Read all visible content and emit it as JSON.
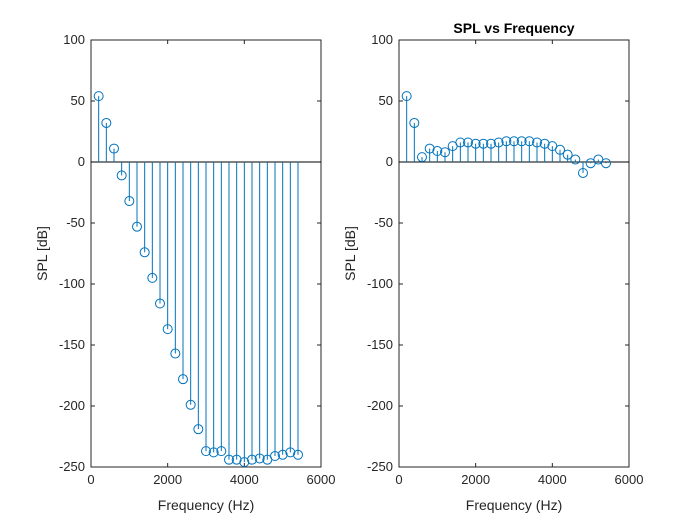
{
  "chart_data": [
    {
      "type": "stem",
      "title": "",
      "xlabel": "Frequency (Hz)",
      "ylabel": "SPL [dB]",
      "xlim": [
        0,
        6000
      ],
      "ylim": [
        -250,
        100
      ],
      "xticks": [
        "0",
        "2000",
        "4000",
        "6000"
      ],
      "yticks": [
        "100",
        "50",
        "0",
        "-50",
        "-100",
        "-150",
        "-200",
        "-250"
      ],
      "grid": false,
      "color": "#0072BD",
      "x": [
        200,
        400,
        600,
        800,
        1000,
        1200,
        1400,
        1600,
        1800,
        2000,
        2200,
        2400,
        2600,
        2800,
        3000,
        3200,
        3400,
        3600,
        3800,
        4000,
        4200,
        4400,
        4600,
        4800,
        5000,
        5200,
        5400
      ],
      "y": [
        54,
        32,
        11,
        -11,
        -32,
        -53,
        -74,
        -95,
        -116,
        -137,
        -157,
        -178,
        -199,
        -219,
        -237,
        -238,
        -237,
        -244,
        -244,
        -246,
        -244,
        -243,
        -244,
        -241,
        -240,
        -238,
        -240
      ]
    },
    {
      "type": "stem",
      "title": "SPL vs Frequency",
      "xlabel": "Frequency (Hz)",
      "ylabel": "SPL [dB]",
      "xlim": [
        0,
        6000
      ],
      "ylim": [
        -250,
        100
      ],
      "xticks": [
        "0",
        "2000",
        "4000",
        "6000"
      ],
      "yticks": [
        "100",
        "50",
        "0",
        "-50",
        "-100",
        "-150",
        "-200",
        "-250"
      ],
      "grid": false,
      "color": "#0072BD",
      "x": [
        200,
        400,
        600,
        800,
        1000,
        1200,
        1400,
        1600,
        1800,
        2000,
        2200,
        2400,
        2600,
        2800,
        3000,
        3200,
        3400,
        3600,
        3800,
        4000,
        4200,
        4400,
        4600,
        4800,
        5000,
        5200,
        5400
      ],
      "y": [
        54,
        32,
        4,
        11,
        9,
        8,
        13,
        16,
        16,
        15,
        15,
        15,
        16,
        17,
        17,
        17,
        17,
        16,
        15,
        13,
        10,
        6,
        2,
        -9,
        -1,
        2,
        -1
      ]
    }
  ]
}
